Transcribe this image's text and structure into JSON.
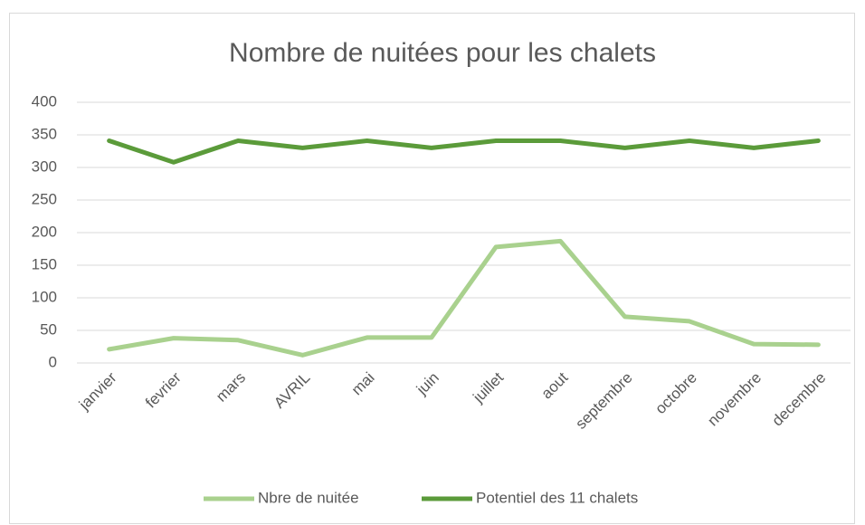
{
  "chart_data": {
    "type": "line",
    "title": "Nombre de nuitées pour les chalets",
    "categories": [
      "janvier",
      "fevrier",
      "mars",
      "AVRIL",
      "mai",
      "juin",
      "juillet",
      "aout",
      "septembre",
      "octobre",
      "novembre",
      "decembre"
    ],
    "series": [
      {
        "name": "Nbre de nuitée",
        "color": "#a9d18e",
        "values": [
          21,
          38,
          35,
          12,
          39,
          39,
          178,
          187,
          71,
          64,
          29,
          28
        ]
      },
      {
        "name": "Potentiel des 11 chalets",
        "color": "#5b9b3a",
        "values": [
          341,
          308,
          341,
          330,
          341,
          330,
          341,
          341,
          330,
          341,
          330,
          341
        ]
      }
    ],
    "ylim": [
      0,
      400
    ],
    "yticks": [
      0,
      50,
      100,
      150,
      200,
      250,
      300,
      350,
      400
    ],
    "grid": true,
    "legend": "bottom"
  }
}
